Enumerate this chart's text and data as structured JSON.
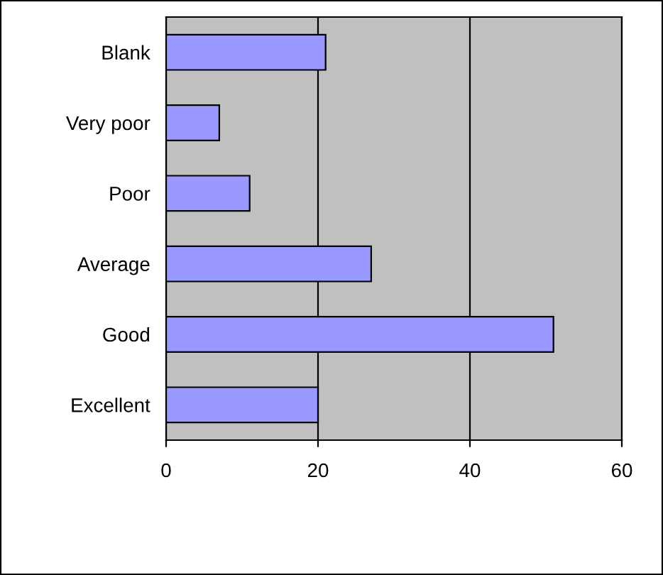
{
  "chart_data": {
    "type": "bar",
    "orientation": "horizontal",
    "categories": [
      "Blank",
      "Very poor",
      "Poor",
      "Average",
      "Good",
      "Excellent"
    ],
    "values": [
      21,
      7,
      11,
      27,
      51,
      20
    ],
    "color": "#9999ff",
    "xlim": [
      0,
      60
    ],
    "xticks": [
      0,
      20,
      40,
      60
    ],
    "grid": "x"
  }
}
